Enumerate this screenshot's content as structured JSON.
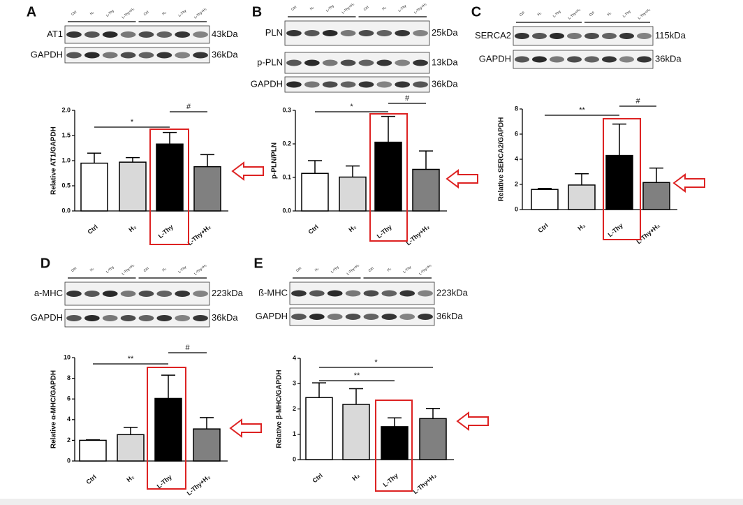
{
  "chart_data": [
    {
      "type": "bar",
      "panel": "A",
      "y_label": "Relative AT1/GAPDH",
      "lanes": [
        "Ctrl",
        "H₂",
        "L-Thy",
        "L-Thy+H₂",
        "Ctrl",
        "H₂",
        "L-Thy",
        "L-Thy+H₂"
      ],
      "blots": [
        {
          "label": "AT1",
          "size": "43kDa"
        },
        {
          "label": "GAPDH",
          "size": "36kDa"
        }
      ],
      "categories": [
        "Ctrl",
        "H₂",
        "L-Thy",
        "L-Thy+H₂"
      ],
      "values": [
        0.95,
        0.97,
        1.33,
        0.88
      ],
      "errors": [
        0.2,
        0.09,
        0.23,
        0.24
      ],
      "colors": [
        "#ffffff",
        "#d9d9d9",
        "#000000",
        "#808080"
      ],
      "ylim": [
        0,
        2
      ],
      "yticks": [
        {
          "value": 0,
          "label": "0.0"
        },
        0.5,
        {
          "value": 1,
          "label": "1.0"
        },
        1.5,
        {
          "value": 2,
          "label": "2.0"
        }
      ],
      "annotations": [
        "*",
        "#"
      ]
    },
    {
      "type": "bar",
      "panel": "B",
      "y_label": "p-PLN/PLN",
      "lanes": [
        "Ctrl",
        "H₂",
        "L-Thy",
        "L-Thy+H₂",
        "Ctrl",
        "H₂",
        "L-Thy",
        "L-Thy+H₂"
      ],
      "blots": [
        {
          "label": "PLN",
          "size": "25kDa"
        },
        {
          "label": "p-PLN",
          "size": "13kDa"
        },
        {
          "label": "GAPDH",
          "size": "36kDa"
        }
      ],
      "categories": [
        "Ctrl",
        "H₂",
        "L-Thy",
        "L-Thy+H₂"
      ],
      "values": [
        0.112,
        0.101,
        0.205,
        0.124
      ],
      "errors": [
        0.038,
        0.033,
        0.077,
        0.055
      ],
      "colors": [
        "#ffffff",
        "#d9d9d9",
        "#000000",
        "#808080"
      ],
      "ylim": [
        0,
        0.3
      ],
      "yticks": [
        {
          "value": 0,
          "label": "0.0"
        },
        0.1,
        0.2,
        0.3
      ],
      "annotations": [
        "*",
        "#"
      ]
    },
    {
      "type": "bar",
      "panel": "C",
      "y_label": "Relative SERCA2/GAPDH",
      "lanes": [
        "Ctrl",
        "H₂",
        "L-Thy",
        "L-Thy+H₂",
        "Ctrl",
        "H₂",
        "L-Thy",
        "L-Thy+H₂"
      ],
      "blots": [
        {
          "label": "SERCA2",
          "size": "115kDa"
        },
        {
          "label": "GAPDH",
          "size": "36kDa"
        }
      ],
      "categories": [
        "Ctrl",
        "H₂",
        "L-Thy",
        "L-Thy+H₂"
      ],
      "values": [
        1.6,
        1.95,
        4.3,
        2.15
      ],
      "errors": [
        0.08,
        0.9,
        2.5,
        1.15
      ],
      "colors": [
        "#ffffff",
        "#d9d9d9",
        "#000000",
        "#808080"
      ],
      "ylim": [
        0,
        8
      ],
      "yticks": [
        0,
        2,
        4,
        6,
        8
      ],
      "annotations": [
        "**",
        "#"
      ]
    },
    {
      "type": "bar",
      "panel": "D",
      "y_label": "Relative α-MHC/GAPDH",
      "lanes": [
        "Ctrl",
        "H₂",
        "L-Thy",
        "L-Thy+H₂",
        "Ctrl",
        "H₂",
        "L-Thy",
        "L-Thy+H₂"
      ],
      "blots": [
        {
          "label": "a-MHC",
          "size": "223kDa"
        },
        {
          "label": "GAPDH",
          "size": "36kDa"
        }
      ],
      "categories": [
        "Ctrl",
        "H₂",
        "L-Thy",
        "L-Thy+H₂"
      ],
      "values": [
        2.0,
        2.55,
        6.05,
        3.1
      ],
      "errors": [
        0.05,
        0.7,
        2.25,
        1.1
      ],
      "colors": [
        "#ffffff",
        "#d9d9d9",
        "#000000",
        "#808080"
      ],
      "ylim": [
        0,
        10
      ],
      "yticks": [
        0,
        2,
        4,
        6,
        8,
        10
      ],
      "annotations": [
        "**",
        "#"
      ]
    },
    {
      "type": "bar",
      "panel": "E",
      "y_label": "Relative β-MHC/GAPDH",
      "lanes": [
        "Ctrl",
        "H₂",
        "L-Thy",
        "L-Thy+H₂",
        "Ctrl",
        "H₂",
        "L-Thy",
        "L-Thy+H₂"
      ],
      "blots": [
        {
          "label": "ß-MHC",
          "size": "223kDa"
        },
        {
          "label": "GAPDH",
          "size": "36kDa"
        }
      ],
      "categories": [
        "Ctrl",
        "H₂",
        "L-Thy",
        "L-Thy+H₂"
      ],
      "values": [
        2.45,
        2.18,
        1.3,
        1.62
      ],
      "errors": [
        0.58,
        0.62,
        0.35,
        0.4
      ],
      "colors": [
        "#ffffff",
        "#d9d9d9",
        "#000000",
        "#808080"
      ],
      "ylim": [
        0,
        4
      ],
      "yticks": [
        0,
        1,
        2,
        3,
        4
      ],
      "annotations": [
        "*",
        "**"
      ]
    }
  ]
}
